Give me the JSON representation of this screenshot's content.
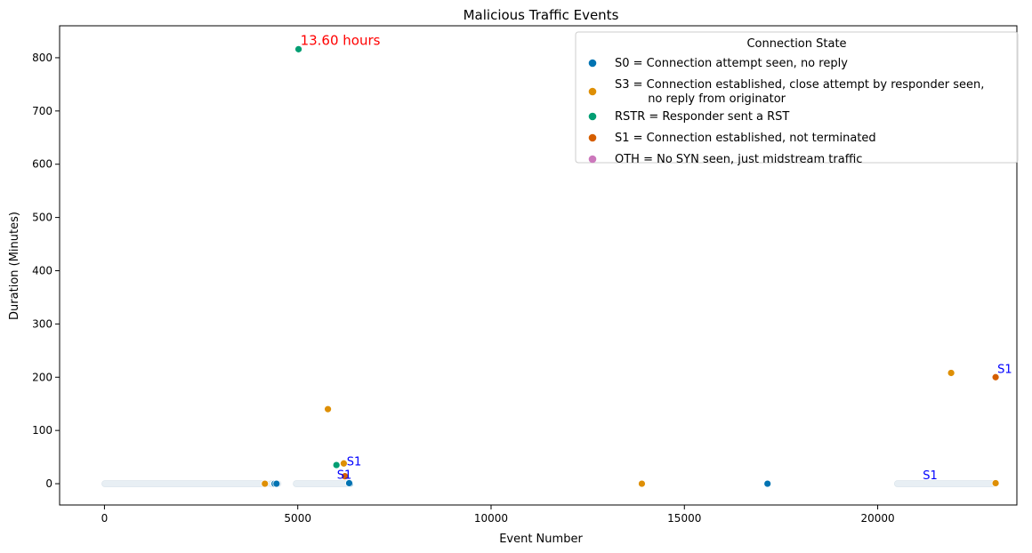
{
  "chart_data": {
    "type": "scatter",
    "title": "Malicious Traffic Events",
    "xlabel": "Event Number",
    "ylabel": "Duration (Minutes)",
    "xlim": [
      -1160,
      23600
    ],
    "ylim": [
      -40,
      860
    ],
    "xticks": [
      0,
      5000,
      10000,
      15000,
      20000
    ],
    "yticks": [
      0,
      100,
      200,
      300,
      400,
      500,
      600,
      700,
      800
    ],
    "grid": false,
    "legend": {
      "title": "Connection State",
      "placement": "top-right",
      "entries": [
        {
          "name": "S0",
          "lines": [
            "S0 = Connection attempt seen, no reply"
          ],
          "color": "#0173b2"
        },
        {
          "name": "S3",
          "lines": [
            "S3 = Connection established, close attempt by responder seen,",
            "         no reply from originator"
          ],
          "color": "#de8f05"
        },
        {
          "name": "RSTR",
          "lines": [
            "RSTR = Responder sent a RST"
          ],
          "color": "#029e73"
        },
        {
          "name": "S1",
          "lines": [
            "S1 = Connection established, not terminated"
          ],
          "color": "#d55e00"
        },
        {
          "name": "OTH",
          "lines": [
            "OTH = No SYN seen, just midstream traffic"
          ],
          "color": "#cc78bc"
        }
      ]
    },
    "series": [
      {
        "name": "S0",
        "color": "#0173b2",
        "points": [
          [
            4400,
            0
          ],
          [
            4450,
            0
          ],
          [
            6350,
            0
          ],
          [
            17150,
            0
          ],
          [
            6330,
            1
          ]
        ]
      },
      {
        "name": "S3",
        "color": "#de8f05",
        "points": [
          [
            4150,
            0
          ],
          [
            5780,
            140
          ],
          [
            6190,
            38
          ],
          [
            13900,
            0
          ],
          [
            21900,
            208
          ],
          [
            23050,
            1
          ]
        ]
      },
      {
        "name": "RSTR",
        "color": "#029e73",
        "points": [
          [
            5020,
            816
          ],
          [
            6000,
            35
          ]
        ]
      },
      {
        "name": "S1",
        "color": "#d55e00",
        "points": [
          [
            6220,
            14
          ],
          [
            23050,
            200
          ]
        ]
      },
      {
        "name": "OTH",
        "color": "#cc78bc",
        "points": []
      }
    ],
    "dense_bands": [
      {
        "x": [
          0,
          4200
        ],
        "y": 0,
        "color": "#0173b2"
      },
      {
        "x": [
          4300,
          4500
        ],
        "y": 0,
        "color": "#0173b2"
      },
      {
        "x": [
          4950,
          6300
        ],
        "y": 0,
        "color": "#0173b2"
      },
      {
        "x": [
          20500,
          23000
        ],
        "y": 0,
        "color": "#0173b2"
      }
    ],
    "annotations": [
      {
        "text": "13.60 hours",
        "x": 5020,
        "y": 816,
        "color": "#ff0000",
        "size": 15
      },
      {
        "text": "S1",
        "x": 6220,
        "y": 14,
        "color": "#0000ff",
        "size": 13
      },
      {
        "text": "S1",
        "x": 6220,
        "y": 14,
        "color": "#0000ff",
        "size": 13,
        "alt": true
      },
      {
        "text": "S1",
        "x": 23050,
        "y": 200,
        "color": "#0000ff",
        "size": 13
      },
      {
        "text": "S1",
        "x": 21350,
        "y": 0,
        "color": "#0000ff",
        "size": 13
      }
    ]
  }
}
